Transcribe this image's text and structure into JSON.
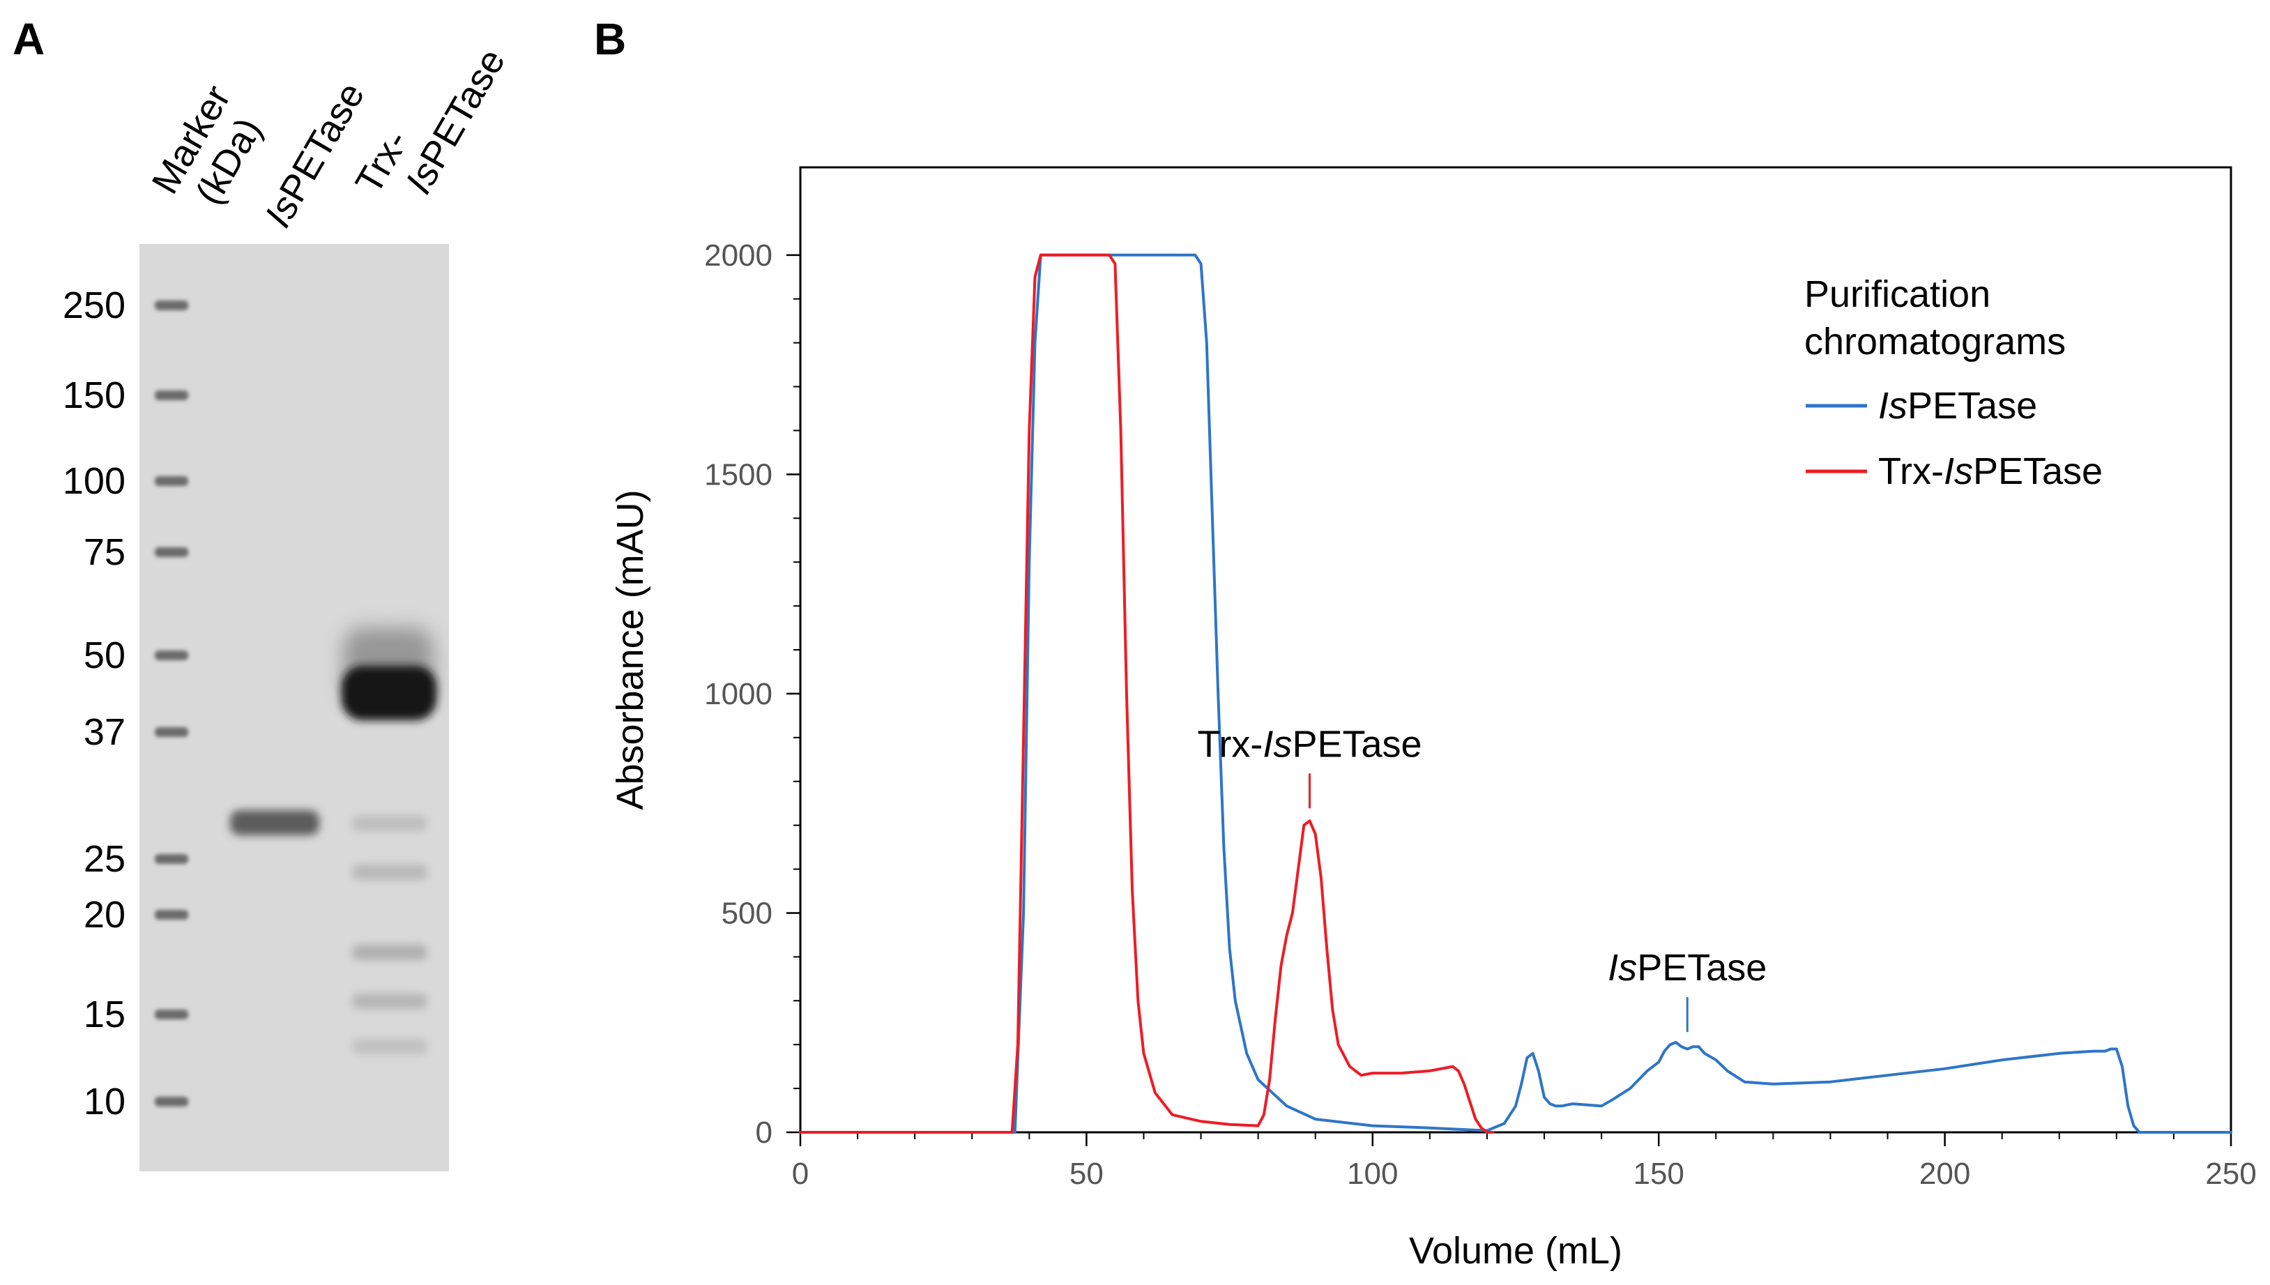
{
  "panel_a": {
    "letter": "A",
    "lanes": {
      "marker": [
        "Marker",
        "(kDa)"
      ],
      "lane1_italic": "Is",
      "lane1_rest": "PETase",
      "lane2_line1": "Trx-",
      "lane2_italic": "Is",
      "lane2_rest": "PETase"
    },
    "marker_kda": [
      "250",
      "150",
      "100",
      "75",
      "50",
      "37",
      "25",
      "20",
      "15",
      "10"
    ],
    "colors": {
      "gel_background": "#d9d9d9",
      "band": "#333333"
    }
  },
  "panel_b": {
    "letter": "B"
  },
  "chart_data": {
    "type": "line",
    "xlabel": "Volume (mL)",
    "ylabel": "Absorbance (mAU)",
    "xlim": [
      0,
      250
    ],
    "ylim": [
      0,
      2200
    ],
    "xticks": [
      0,
      50,
      100,
      150,
      200,
      250
    ],
    "yticks": [
      0,
      500,
      1000,
      1500,
      2000
    ],
    "legend": {
      "position": "top-right",
      "title_line1": "Purification",
      "title_line2": "chromatograms",
      "entries": [
        {
          "italic": "Is",
          "rest": "PETase",
          "color": "#2e75c9"
        },
        {
          "prefix": "Trx-",
          "italic": "Is",
          "rest": "PETase",
          "color": "#ee1c25"
        }
      ]
    },
    "annotations": [
      {
        "prefix": "Trx-",
        "italic": "Is",
        "rest": "PETase",
        "x": 89,
        "y": 710,
        "color": "#ee1c25"
      },
      {
        "prefix": "",
        "italic": "Is",
        "rest": "PETase",
        "x": 155,
        "y": 200,
        "color": "#2e75c9"
      }
    ],
    "series": [
      {
        "name": "IsPETase",
        "color": "#2e75c9",
        "x": [
          0,
          37.5,
          39,
          40,
          41,
          42,
          43,
          45,
          50,
          55,
          60,
          65,
          69,
          70,
          71,
          72,
          73,
          74,
          75,
          76,
          78,
          80,
          85,
          90,
          100,
          110,
          118,
          120,
          123,
          125,
          126,
          127,
          128,
          129,
          130,
          131,
          132,
          133,
          135,
          140,
          142,
          145,
          148,
          150,
          151,
          152,
          153,
          154,
          155,
          156,
          157,
          158,
          160,
          162,
          165,
          170,
          180,
          190,
          200,
          210,
          220,
          226,
          228,
          229,
          230,
          231,
          232,
          233,
          234,
          235,
          240,
          250
        ],
        "y": [
          0,
          0,
          500,
          1300,
          1800,
          2000,
          2000,
          2000,
          2000,
          2000,
          2000,
          2000,
          2000,
          1980,
          1800,
          1400,
          1000,
          650,
          420,
          300,
          180,
          120,
          60,
          30,
          15,
          10,
          5,
          4,
          20,
          60,
          110,
          170,
          180,
          140,
          80,
          65,
          60,
          60,
          65,
          60,
          75,
          100,
          140,
          160,
          185,
          200,
          205,
          195,
          190,
          195,
          195,
          180,
          165,
          140,
          115,
          110,
          115,
          130,
          145,
          165,
          180,
          185,
          185,
          190,
          190,
          150,
          60,
          15,
          0,
          0,
          0,
          0
        ]
      },
      {
        "name": "Trx-IsPETase",
        "color": "#ee1c25",
        "x": [
          0,
          37,
          38,
          39,
          40,
          41,
          42,
          43,
          45,
          50,
          54,
          55,
          56,
          57,
          58,
          59,
          60,
          62,
          65,
          70,
          75,
          80,
          81,
          82,
          83,
          84,
          85,
          86,
          87,
          88,
          89,
          90,
          91,
          92,
          93,
          94,
          96,
          98,
          100,
          105,
          110,
          112,
          114,
          115,
          116,
          117,
          118,
          119,
          120,
          121
        ],
        "y": [
          0,
          0,
          200,
          900,
          1600,
          1950,
          2000,
          2000,
          2000,
          2000,
          2000,
          1980,
          1600,
          1000,
          550,
          300,
          180,
          90,
          40,
          25,
          18,
          15,
          40,
          120,
          260,
          380,
          450,
          500,
          600,
          700,
          710,
          680,
          580,
          420,
          280,
          200,
          150,
          130,
          135,
          135,
          140,
          145,
          150,
          140,
          110,
          70,
          30,
          10,
          0,
          0
        ]
      }
    ]
  }
}
